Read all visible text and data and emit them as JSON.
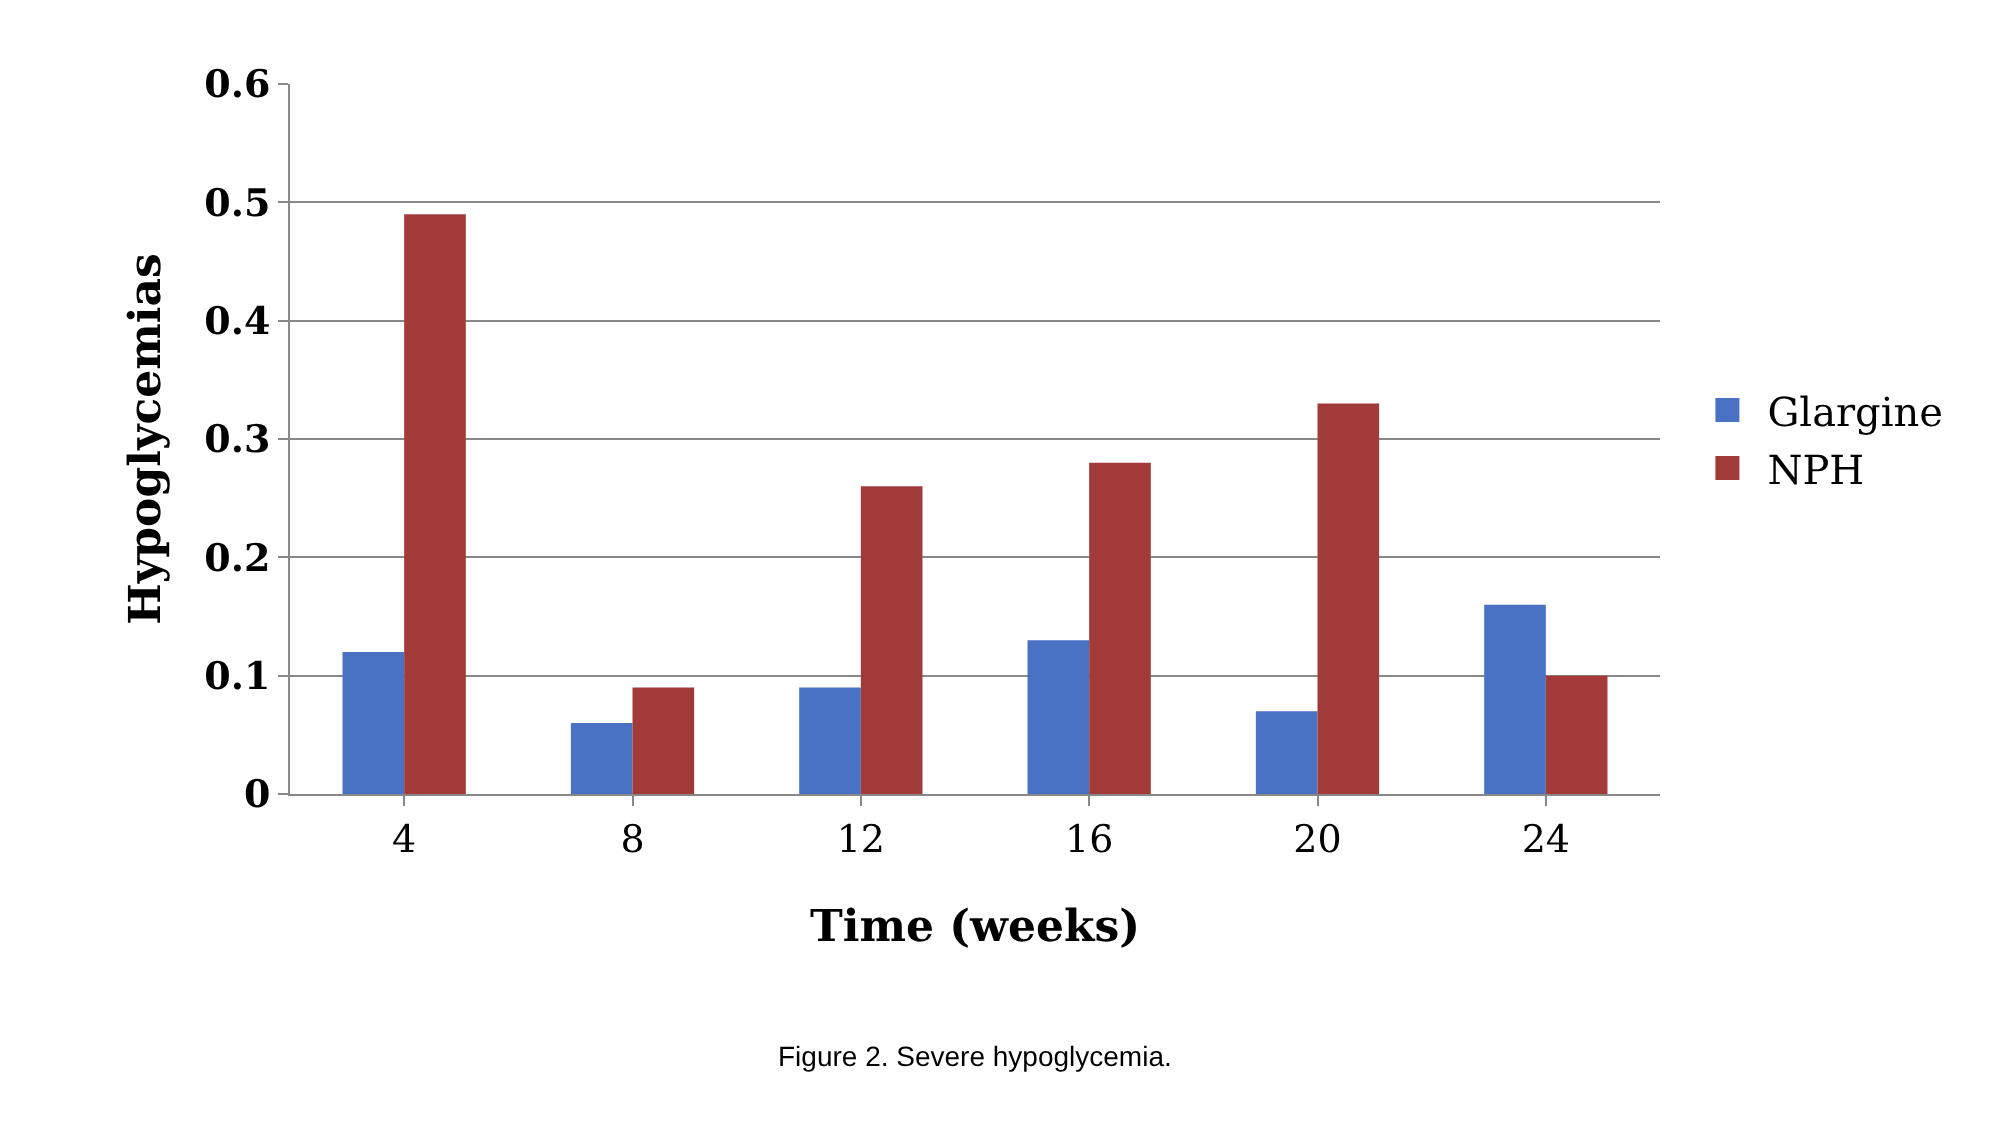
{
  "chart_data": {
    "type": "bar",
    "xlabel": "Time (weeks)",
    "ylabel": "Hypoglycemias",
    "categories": [
      "4",
      "8",
      "12",
      "16",
      "20",
      "24"
    ],
    "series": [
      {
        "name": "Glargine",
        "color": "#4a72c4",
        "values": [
          0.12,
          0.06,
          0.09,
          0.13,
          0.07,
          0.16
        ]
      },
      {
        "name": "NPH",
        "color": "#a33a3a",
        "values": [
          0.49,
          0.09,
          0.26,
          0.28,
          0.33,
          0.1
        ]
      }
    ],
    "ylim": [
      0,
      0.6
    ],
    "yticks": [
      {
        "value": 0,
        "label": "0"
      },
      0.1,
      0.2,
      0.3,
      0.4,
      0.5,
      0.6
    ],
    "grid": "y",
    "legend": "right",
    "annotations": [
      "Figure 2. Severe hypoglycemia."
    ]
  }
}
